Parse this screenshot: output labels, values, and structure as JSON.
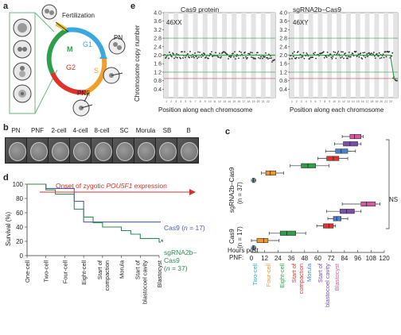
{
  "panels": {
    "a": "a",
    "b": "b",
    "c": "c",
    "d": "d",
    "e": "e"
  },
  "panel_a": {
    "fertilization": "Fertilization",
    "phase_m": "M",
    "phase_g1": "G1",
    "phase_s": "S",
    "phase_g2": "G2",
    "pn": "PN",
    "pnf": "PNF",
    "colors": {
      "m": "#2e9e4a",
      "g1": "#3aa7e0",
      "s": "#f0a02a",
      "g2": "#e0312a"
    }
  },
  "panel_b": {
    "stages": [
      "PN",
      "PNF",
      "2-cell",
      "4-cell",
      "8-cell",
      "SC",
      "Morula",
      "SB",
      "B"
    ]
  },
  "panel_e": {
    "ylabel": "Chromosome copy number",
    "xlabel": "Position along each chromosome",
    "titles": [
      "Cas9 protein",
      "sgRNA2b–Cas9"
    ],
    "genotypes": [
      "46XX",
      "46XY"
    ],
    "yticks": [
      "0.4",
      "0.8",
      "1.2",
      "1.6",
      "2.0",
      "2.4",
      "2.8",
      "3.2",
      "3.6",
      "4.0"
    ]
  },
  "panel_d": {
    "ylabel": "Survival (%)",
    "yticks": [
      "0",
      "20",
      "40",
      "60",
      "80",
      "100"
    ],
    "xticks": [
      "One-cell",
      "Two-cell",
      "Four-cell",
      "Eight-cell",
      "Start of compaction",
      "Morula",
      "Start of blastocoel cavity",
      "Blastocyst"
    ],
    "annotation_prefix": "Onset of zygotic ",
    "annotation_gene": "POU5F1",
    "annotation_suffix": " expression",
    "cas9_label": "Cas9 (",
    "cas9_n": "n",
    "cas9_count": " = 17)",
    "sg_label1": "sgRNA2b–",
    "sg_label2": "Cas9",
    "sg_n_prefix": "(",
    "sg_n": "n",
    "sg_count": " = 37)",
    "star": "*",
    "colors": {
      "cas9": "#4a5fa8",
      "sg": "#2e8b57",
      "arrow": "#d9302a"
    }
  },
  "panel_c": {
    "group_top": "sgRNA2b–Cas9",
    "group_top_n": "(n = 37)",
    "group_bottom": "Cas9",
    "group_bottom_n": "(n = 17)",
    "hours_post": "Hours post",
    "pnf_label": "PNF:",
    "xticks": [
      "0",
      "12",
      "24",
      "36",
      "48",
      "60",
      "72",
      "84",
      "96",
      "108",
      "120"
    ],
    "ns": "NS",
    "stage_labels": [
      "Two-cell",
      "Four-cell",
      "Eight-cell",
      "Start of compaction",
      "Morula",
      "Start of blastocoel cavity",
      "Blastocyst"
    ],
    "stage_colors": [
      "#3aa7c7",
      "#f0962a",
      "#2e9e4a",
      "#e0312a",
      "#4a7fd0",
      "#7b4fa8",
      "#d45aa0"
    ]
  },
  "chart_data": [
    {
      "type": "line",
      "title": "",
      "xlabel": "",
      "ylabel": "Survival (%)",
      "ylim": [
        0,
        100
      ],
      "categories": [
        "One-cell",
        "Two-cell",
        "Four-cell",
        "Eight-cell",
        "Start of compaction",
        "Morula",
        "Start of blastocoel cavity",
        "Blastocyst"
      ],
      "series": [
        {
          "name": "Cas9 (n = 17)",
          "color": "#4a5fa8",
          "steps": [
            [
              0,
              100
            ],
            [
              1,
              94
            ],
            [
              2,
              94
            ],
            [
              2.5,
              76
            ],
            [
              3,
              47
            ],
            [
              4,
              47
            ],
            [
              5,
              47
            ],
            [
              6,
              47
            ],
            [
              7,
              47
            ]
          ]
        },
        {
          "name": "sgRNA2b–Cas9 (n = 37)",
          "color": "#2e8b57",
          "steps": [
            [
              0,
              100
            ],
            [
              1,
              92
            ],
            [
              1.5,
              86
            ],
            [
              2,
              86
            ],
            [
              2.5,
              65
            ],
            [
              3,
              54
            ],
            [
              3.5,
              46
            ],
            [
              4,
              40
            ],
            [
              5,
              35
            ],
            [
              5.5,
              30
            ],
            [
              6,
              24
            ],
            [
              7,
              19
            ]
          ]
        }
      ]
    },
    {
      "type": "box",
      "xlabel": "Hours post PNF",
      "xlim": [
        0,
        120
      ],
      "groups": [
        {
          "name": "sgRNA2b–Cas9",
          "n": 37,
          "boxes": [
            {
              "stage": "Two-cell",
              "min": 0,
              "q1": 1,
              "median": 2,
              "q3": 3,
              "max": 4
            },
            {
              "stage": "Four-cell",
              "min": 9,
              "q1": 13,
              "median": 17,
              "q3": 22,
              "max": 29
            },
            {
              "stage": "Eight-cell",
              "min": 35,
              "q1": 45,
              "median": 51,
              "q3": 58,
              "max": 70
            },
            {
              "stage": "Start of compaction",
              "min": 60,
              "q1": 68,
              "median": 74,
              "q3": 79,
              "max": 87
            },
            {
              "stage": "Morula",
              "min": 67,
              "q1": 76,
              "median": 81,
              "q3": 87,
              "max": 94
            },
            {
              "stage": "Start of blastocoel cavity",
              "min": 75,
              "q1": 83,
              "median": 89,
              "q3": 96,
              "max": 99
            },
            {
              "stage": "Blastocyst",
              "min": 82,
              "q1": 89,
              "median": 93,
              "q3": 99,
              "max": 101
            }
          ]
        },
        {
          "name": "Cas9",
          "n": 17,
          "boxes": [
            {
              "stage": "Two-cell",
              "min": 0,
              "q1": 1,
              "median": 2,
              "q3": 3,
              "max": 4
            },
            {
              "stage": "Four-cell",
              "min": 0,
              "q1": 5,
              "median": 11,
              "q3": 15,
              "max": 25
            },
            {
              "stage": "Eight-cell",
              "min": 16,
              "q1": 26,
              "median": 32,
              "q3": 40,
              "max": 49
            },
            {
              "stage": "Start of compaction",
              "min": 59,
              "q1": 65,
              "median": 70,
              "q3": 74,
              "max": 76
            },
            {
              "stage": "Morula",
              "min": 69,
              "q1": 74,
              "median": 77,
              "q3": 81,
              "max": 87
            },
            {
              "stage": "Start of blastocoel cavity",
              "min": 68,
              "q1": 80,
              "median": 86,
              "q3": 93,
              "max": 99
            },
            {
              "stage": "Blastocyst",
              "min": 82,
              "q1": 99,
              "median": 104,
              "q3": 112,
              "max": 116
            }
          ]
        }
      ]
    },
    {
      "type": "scatter",
      "titles": [
        "Cas9 protein",
        "sgRNA2b–Cas9"
      ],
      "ylabel": "Chromosome copy number",
      "xlabel": "Position along each chromosome",
      "ylim": [
        0,
        4
      ],
      "baseline": 2.0
    }
  ]
}
